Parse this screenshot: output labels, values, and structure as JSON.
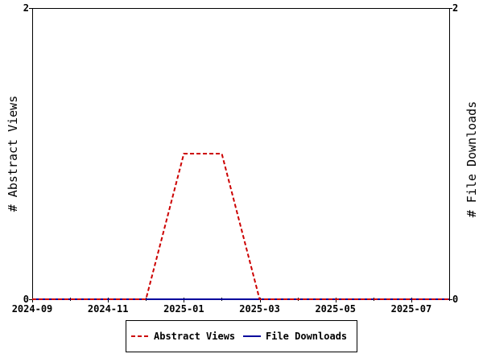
{
  "chart_data": {
    "type": "line",
    "title": "",
    "xlabel": "",
    "ylabel_left": "# Abstract Views",
    "ylabel_right": "# File Downloads",
    "x_ticks": [
      "2024-09",
      "2024-11",
      "2025-01",
      "2025-03",
      "2025-05",
      "2025-07"
    ],
    "x": [
      "2024-09",
      "2024-10",
      "2024-11",
      "2024-12",
      "2025-01",
      "2025-02",
      "2025-03",
      "2025-04",
      "2025-05",
      "2025-06",
      "2025-07",
      "2025-08"
    ],
    "xlim": [
      "2024-09",
      "2025-08"
    ],
    "ylim_left": [
      0,
      2
    ],
    "ylim_right": [
      0,
      2
    ],
    "y_ticks_left": [
      "0",
      "2"
    ],
    "y_ticks_right": [
      "0",
      "2"
    ],
    "grid": false,
    "legend_position": "bottom-center",
    "series": [
      {
        "name": "Abstract Views",
        "axis": "left",
        "color": "#cc0000",
        "dash": "dashed",
        "values": [
          0,
          0,
          0,
          0,
          1,
          1,
          0,
          0,
          0,
          0,
          0,
          0
        ]
      },
      {
        "name": "File Downloads",
        "axis": "right",
        "color": "#00009c",
        "dash": "solid",
        "values": [
          0,
          0,
          0,
          0,
          0,
          0,
          0,
          0,
          0,
          0,
          0,
          0
        ]
      }
    ]
  }
}
